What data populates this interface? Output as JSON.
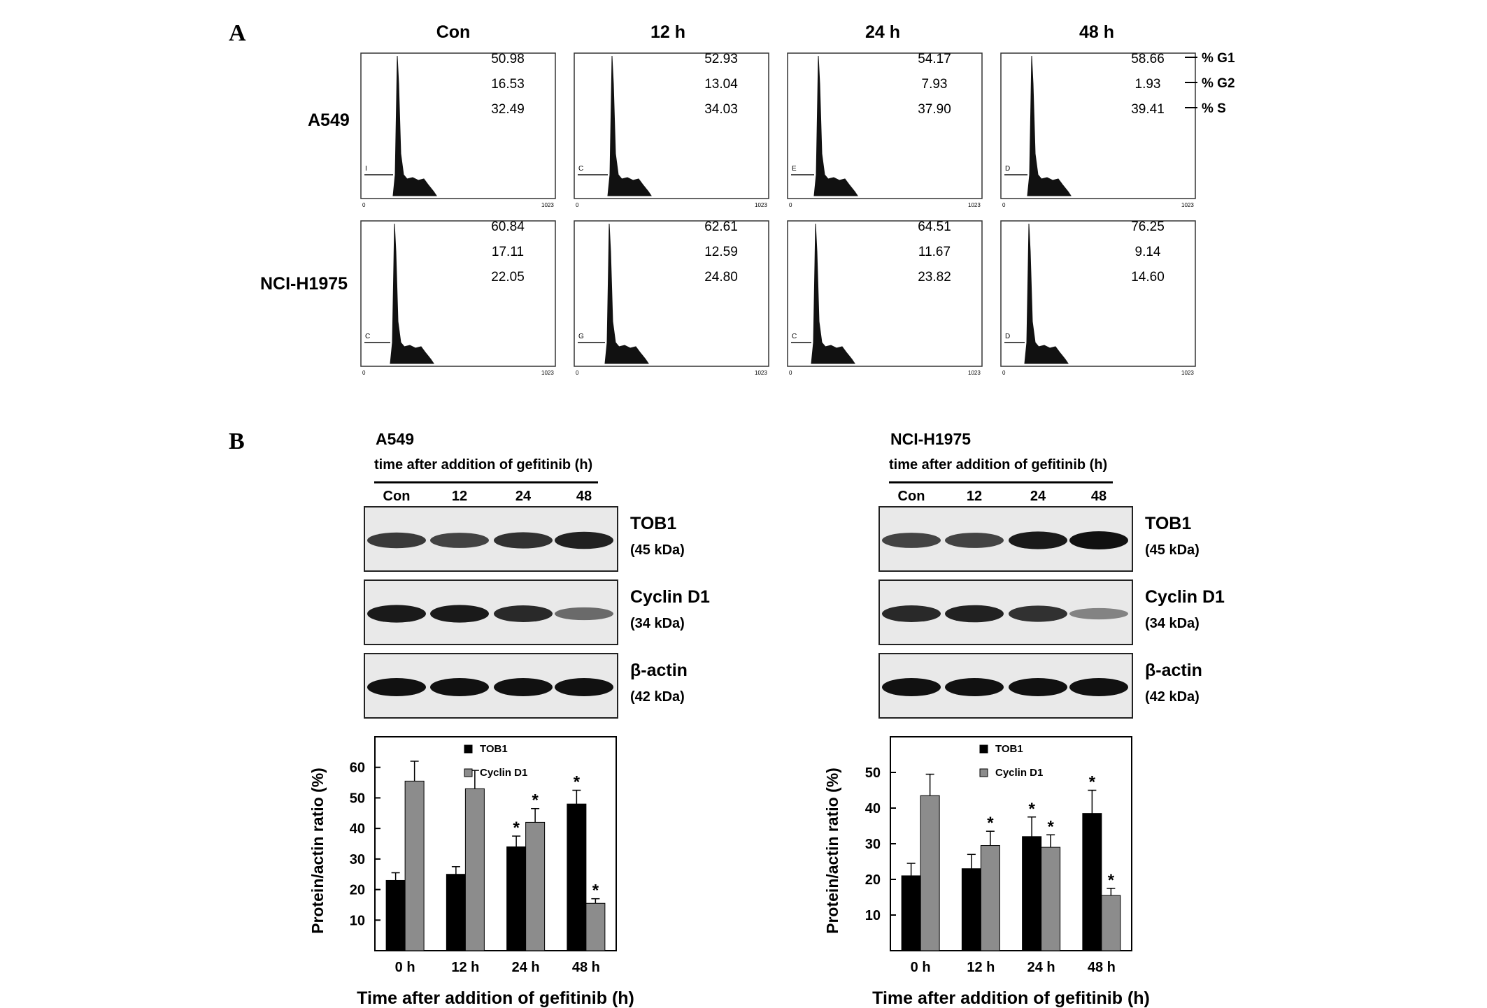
{
  "panel_a": {
    "letter": "A",
    "columns": [
      "Con",
      "12 h",
      "24 h",
      "48 h"
    ],
    "rows": [
      {
        "label": "A549",
        "histograms": [
          {
            "values": [
              "50.98",
              "16.53",
              "32.49"
            ],
            "gate": "I",
            "xmax": "1023",
            "xmin": "0"
          },
          {
            "values": [
              "52.93",
              "13.04",
              "34.03"
            ],
            "gate": "C",
            "xmax": "1023",
            "xmin": "0"
          },
          {
            "values": [
              "54.17",
              "7.93",
              "37.90"
            ],
            "gate": "E",
            "xmax": "1023",
            "xmin": "0"
          },
          {
            "values": [
              "58.66",
              "1.93",
              "39.41"
            ],
            "gate": "D",
            "xmax": "1023",
            "xmin": "0"
          }
        ]
      },
      {
        "label": "NCI-H1975",
        "histograms": [
          {
            "values": [
              "60.84",
              "17.11",
              "22.05"
            ],
            "gate": "C",
            "xmax": "1023",
            "xmin": "0"
          },
          {
            "values": [
              "62.61",
              "12.59",
              "24.80"
            ],
            "gate": "G",
            "xmax": "1023",
            "xmin": "0"
          },
          {
            "values": [
              "64.51",
              "11.67",
              "23.82"
            ],
            "gate": "C",
            "xmax": "1023",
            "xmin": "0"
          },
          {
            "values": [
              "76.25",
              "9.14",
              "14.60"
            ],
            "gate": "D",
            "xmax": "1023",
            "xmin": "0"
          }
        ]
      }
    ],
    "phase_labels": [
      "% G1",
      "% G2",
      "% S"
    ]
  },
  "panel_b": {
    "letter": "B",
    "blots": [
      {
        "cell_line": "A549",
        "time_header": "time after addition of gefitinib (h)",
        "lanes": [
          "Con",
          "12",
          "24",
          "48"
        ],
        "proteins": [
          {
            "name": "TOB1",
            "kda": "(45 kDa)",
            "intensity": [
              0.75,
              0.7,
              0.8,
              0.9
            ]
          },
          {
            "name": "Cyclin D1",
            "kda": "(34 kDa)",
            "intensity": [
              0.95,
              0.95,
              0.85,
              0.45
            ]
          },
          {
            "name": "β-actin",
            "kda": "(42 kDa)",
            "intensity": [
              1.0,
              1.0,
              1.0,
              1.0
            ]
          }
        ]
      },
      {
        "cell_line": "NCI-H1975",
        "time_header": "time after addition of gefitinib (h)",
        "lanes": [
          "Con",
          "12",
          "24",
          "48"
        ],
        "proteins": [
          {
            "name": "TOB1",
            "kda": "(45 kDa)",
            "intensity": [
              0.7,
              0.7,
              0.95,
              1.0
            ]
          },
          {
            "name": "Cyclin D1",
            "kda": "(34 kDa)",
            "intensity": [
              0.85,
              0.9,
              0.8,
              0.3
            ]
          },
          {
            "name": "β-actin",
            "kda": "(42 kDa)",
            "intensity": [
              1.0,
              1.0,
              1.0,
              1.0
            ]
          }
        ]
      }
    ]
  },
  "chart_data": [
    {
      "type": "bar",
      "categories": [
        "0 h",
        "12 h",
        "24 h",
        "48 h"
      ],
      "series": [
        {
          "name": "TOB1",
          "color": "#000000",
          "values": [
            23,
            25,
            34,
            48
          ],
          "errors": [
            2.5,
            2.5,
            3.5,
            4.5
          ],
          "significant": [
            false,
            false,
            true,
            true
          ]
        },
        {
          "name": "Cyclin D1",
          "color": "#8c8c8c",
          "values": [
            55.5,
            53,
            42,
            15.5
          ],
          "errors": [
            6.5,
            6,
            4.5,
            1.5
          ],
          "significant": [
            false,
            false,
            true,
            true
          ]
        }
      ],
      "xlabel": "Time after addition of gefitinib (h)",
      "ylabel": "Protein/actin ratio (%)",
      "yticks": [
        10,
        20,
        30,
        40,
        50,
        60
      ],
      "ylim": [
        0,
        70
      ],
      "legend": "top-left inside",
      "significance_marker": "*"
    },
    {
      "type": "bar",
      "categories": [
        "0 h",
        "12 h",
        "24 h",
        "48 h"
      ],
      "series": [
        {
          "name": "TOB1",
          "color": "#000000",
          "values": [
            21,
            23,
            32,
            38.5
          ],
          "errors": [
            3.5,
            4,
            5.5,
            6.5
          ],
          "significant": [
            false,
            false,
            true,
            true
          ]
        },
        {
          "name": "Cyclin D1",
          "color": "#8c8c8c",
          "values": [
            43.5,
            29.5,
            29,
            15.5
          ],
          "errors": [
            6,
            4,
            3.5,
            2
          ],
          "significant": [
            false,
            true,
            true,
            true
          ]
        }
      ],
      "xlabel": "Time after addition of gefitinib (h)",
      "ylabel": "Protein/actin ratio (%)",
      "yticks": [
        10,
        20,
        30,
        40,
        50
      ],
      "ylim": [
        0,
        60
      ],
      "legend": "top-left inside",
      "significance_marker": "*"
    }
  ]
}
